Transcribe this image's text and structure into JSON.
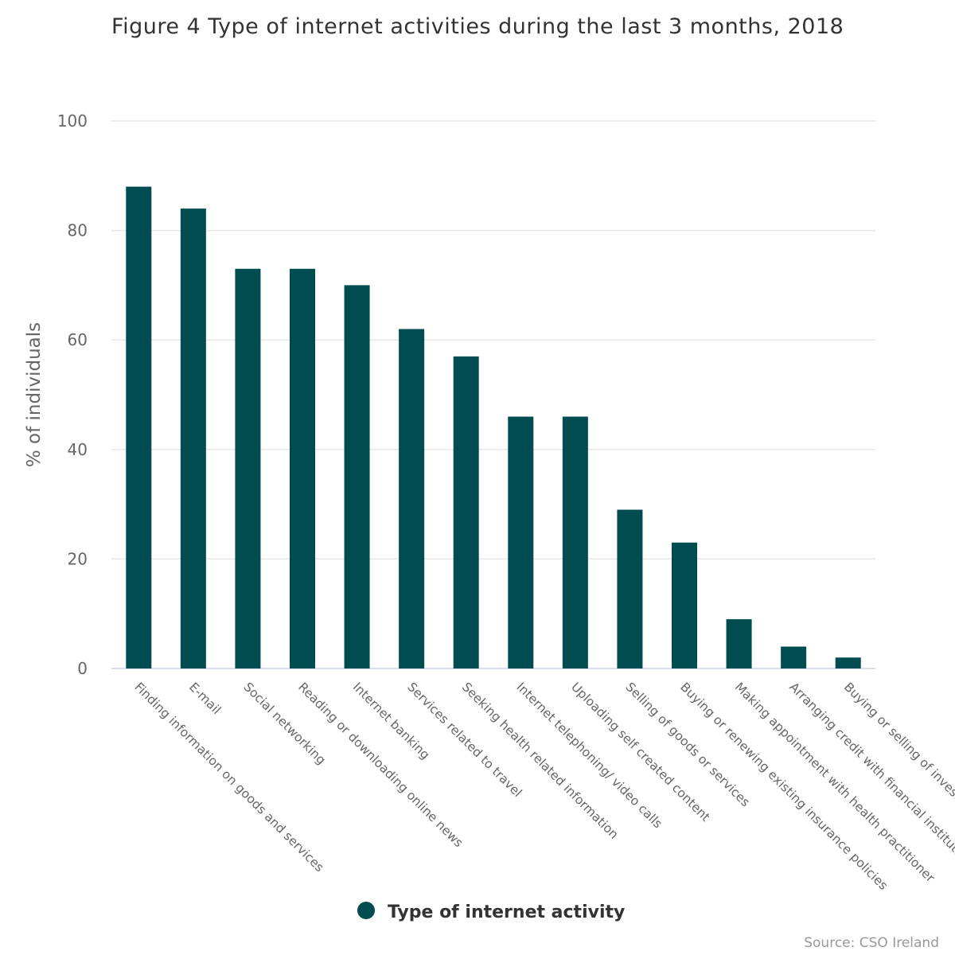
{
  "chart_data": {
    "type": "bar",
    "title": "Figure 4 Type of internet activities during the last 3 months, 2018",
    "xlabel": "",
    "ylabel": "% of individuals",
    "ylim": [
      0,
      100
    ],
    "yticks": [
      0,
      20,
      40,
      60,
      80,
      100
    ],
    "grid": true,
    "legend_position": "bottom-center",
    "categories": [
      "Finding information on goods and services",
      "E-mail",
      "Social networking",
      "Reading or downloading online news",
      "Internet banking",
      "Services related to travel",
      "Seeking health related information",
      "Internet telephoning/ video calls",
      "Uploading self created content",
      "Selling of goods or services",
      "Buying or renewing existing insurance policies",
      "Making appointment with health practitioner",
      "Arranging credit with financial institutions",
      "Buying or selling of investments"
    ],
    "series": [
      {
        "name": "Type of internet activity",
        "color": "#004d51",
        "values": [
          88,
          84,
          73,
          73,
          70,
          62,
          57,
          46,
          46,
          29,
          23,
          9,
          4,
          2
        ]
      }
    ],
    "credit": "Source: CSO Ireland"
  }
}
